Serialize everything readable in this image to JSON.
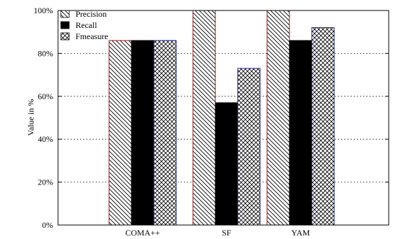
{
  "chart_data": {
    "type": "bar",
    "ylabel": "Value in %",
    "ylim": [
      0,
      100
    ],
    "yticks": [
      "0%",
      "20%",
      "40%",
      "60%",
      "80%",
      "100%"
    ],
    "grid": "y-dotted",
    "legend_position": "top-left",
    "categories": [
      "COMA++",
      "SF",
      "YAM"
    ],
    "series": [
      {
        "name": "Precision",
        "pattern": "diagonal-hatch",
        "stroke": "#8b1a1a",
        "values": [
          86,
          100,
          100
        ]
      },
      {
        "name": "Recall",
        "pattern": "solid",
        "stroke": "#000000",
        "values": [
          86,
          57,
          86
        ]
      },
      {
        "name": "Fmeasure",
        "pattern": "cross-hatch",
        "stroke": "#1a1a6e",
        "values": [
          86,
          73,
          92
        ]
      }
    ]
  }
}
